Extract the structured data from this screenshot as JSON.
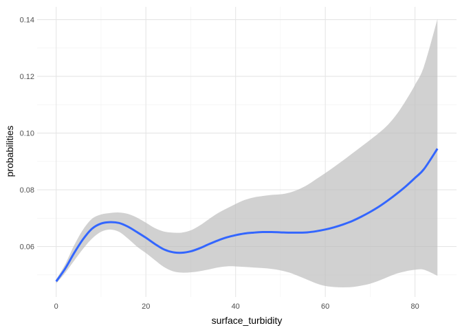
{
  "chart_data": {
    "type": "line",
    "title": "",
    "xlabel": "surface_turbidity",
    "ylabel": "probabilities",
    "xlim": [
      -4.25,
      89.25
    ],
    "ylim": [
      0.0422,
      0.1445
    ],
    "x_ticks": [
      0,
      20,
      40,
      60,
      80
    ],
    "x_tick_labels": [
      "0",
      "20",
      "40",
      "60",
      "80"
    ],
    "y_ticks": [
      0.06,
      0.08,
      0.1,
      0.12,
      0.14
    ],
    "y_tick_labels": [
      "0.06",
      "0.08",
      "0.10",
      "0.12",
      "0.14"
    ],
    "grid": true,
    "legend": "none",
    "series": [
      {
        "style": "smooth line with confidence band",
        "color": "#3366FF",
        "band_color": "#BEBEBE",
        "x": [
          0,
          2,
          4,
          6,
          8,
          10,
          12,
          14,
          16,
          18,
          20,
          22,
          24,
          26,
          28,
          30,
          32,
          34,
          36,
          38,
          40,
          42,
          44,
          46,
          48,
          50,
          52,
          54,
          56,
          58,
          60,
          62,
          64,
          66,
          68,
          70,
          72,
          74,
          76,
          78,
          80,
          82,
          85
        ],
        "y": [
          0.0477,
          0.0522,
          0.0577,
          0.0626,
          0.0663,
          0.0681,
          0.0686,
          0.0683,
          0.067,
          0.0651,
          0.0631,
          0.0609,
          0.059,
          0.058,
          0.0578,
          0.0583,
          0.0594,
          0.0608,
          0.0621,
          0.0632,
          0.064,
          0.0646,
          0.0649,
          0.0651,
          0.0651,
          0.065,
          0.0649,
          0.0649,
          0.065,
          0.0654,
          0.066,
          0.0668,
          0.0678,
          0.069,
          0.0705,
          0.0722,
          0.0741,
          0.0763,
          0.0787,
          0.0813,
          0.0842,
          0.0873,
          0.0945
        ],
        "lower": [
          0.047,
          0.0507,
          0.055,
          0.0592,
          0.0628,
          0.0652,
          0.066,
          0.0652,
          0.0628,
          0.06,
          0.0577,
          0.0552,
          0.0528,
          0.0513,
          0.0508,
          0.0509,
          0.0513,
          0.0519,
          0.0526,
          0.053,
          0.053,
          0.0528,
          0.0526,
          0.0524,
          0.0521,
          0.0516,
          0.0508,
          0.0496,
          0.0483,
          0.047,
          0.0461,
          0.0457,
          0.0456,
          0.0457,
          0.0462,
          0.0469,
          0.048,
          0.0493,
          0.0505,
          0.0513,
          0.0518,
          0.0518,
          0.0497
        ],
        "upper": [
          0.0484,
          0.0537,
          0.0604,
          0.066,
          0.0698,
          0.0713,
          0.0718,
          0.072,
          0.0715,
          0.0702,
          0.0684,
          0.0665,
          0.0653,
          0.0649,
          0.0649,
          0.0657,
          0.0674,
          0.0696,
          0.0717,
          0.0734,
          0.075,
          0.0764,
          0.0773,
          0.0778,
          0.0782,
          0.0784,
          0.079,
          0.0801,
          0.0817,
          0.0838,
          0.0859,
          0.0881,
          0.0904,
          0.0928,
          0.0952,
          0.0976,
          0.1001,
          0.103,
          0.1068,
          0.1116,
          0.117,
          0.1235,
          0.1402
        ]
      }
    ]
  }
}
